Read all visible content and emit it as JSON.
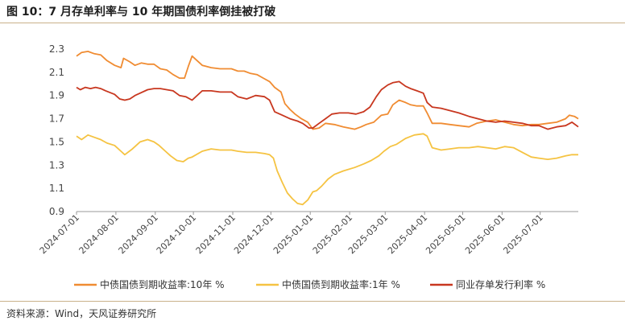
{
  "title": "图 10：7 月存单利率与 10 年期国债利率倒挂被打破",
  "source": "资料来源：Wind，天风证券研究所",
  "chart_data": {
    "type": "line",
    "x_type": "date",
    "xlim": [
      "2024-07-01",
      "2025-07-31"
    ],
    "ylim": [
      0.9,
      2.3
    ],
    "yticks": [
      0.9,
      1.1,
      1.3,
      1.5,
      1.7,
      1.9,
      2.1,
      2.3
    ],
    "xticks": [
      "2024-07-01",
      "2024-08-01",
      "2024-09-01",
      "2024-10-01",
      "2024-11-01",
      "2024-12-01",
      "2025-01-01",
      "2025-02-01",
      "2025-03-01",
      "2025-04-01",
      "2025-05-01",
      "2025-06-01",
      "2025-07-01"
    ],
    "legend_position": "bottom",
    "grid": false,
    "series": [
      {
        "name": "中债国债到期收益率:10年 %",
        "color": "#f08c32",
        "points": [
          [
            "2024-07-01",
            2.24
          ],
          [
            "2024-07-05",
            2.27
          ],
          [
            "2024-07-10",
            2.28
          ],
          [
            "2024-07-15",
            2.26
          ],
          [
            "2024-07-20",
            2.25
          ],
          [
            "2024-07-25",
            2.2
          ],
          [
            "2024-07-31",
            2.16
          ],
          [
            "2024-08-05",
            2.14
          ],
          [
            "2024-08-07",
            2.22
          ],
          [
            "2024-08-12",
            2.19
          ],
          [
            "2024-08-16",
            2.16
          ],
          [
            "2024-08-21",
            2.18
          ],
          [
            "2024-08-26",
            2.17
          ],
          [
            "2024-08-31",
            2.17
          ],
          [
            "2024-09-05",
            2.13
          ],
          [
            "2024-09-10",
            2.12
          ],
          [
            "2024-09-15",
            2.08
          ],
          [
            "2024-09-20",
            2.05
          ],
          [
            "2024-09-24",
            2.05
          ],
          [
            "2024-09-27",
            2.15
          ],
          [
            "2024-09-30",
            2.24
          ],
          [
            "2024-10-08",
            2.16
          ],
          [
            "2024-10-15",
            2.14
          ],
          [
            "2024-10-22",
            2.13
          ],
          [
            "2024-10-31",
            2.13
          ],
          [
            "2024-11-05",
            2.11
          ],
          [
            "2024-11-10",
            2.11
          ],
          [
            "2024-11-15",
            2.09
          ],
          [
            "2024-11-20",
            2.08
          ],
          [
            "2024-11-25",
            2.05
          ],
          [
            "2024-11-30",
            2.02
          ],
          [
            "2024-12-04",
            1.97
          ],
          [
            "2024-12-09",
            1.93
          ],
          [
            "2024-12-12",
            1.83
          ],
          [
            "2024-12-16",
            1.78
          ],
          [
            "2024-12-20",
            1.74
          ],
          [
            "2024-12-25",
            1.7
          ],
          [
            "2024-12-30",
            1.67
          ],
          [
            "2025-01-03",
            1.61
          ],
          [
            "2025-01-08",
            1.62
          ],
          [
            "2025-01-13",
            1.66
          ],
          [
            "2025-01-20",
            1.65
          ],
          [
            "2025-01-27",
            1.63
          ],
          [
            "2025-02-05",
            1.61
          ],
          [
            "2025-02-10",
            1.63
          ],
          [
            "2025-02-14",
            1.65
          ],
          [
            "2025-02-20",
            1.67
          ],
          [
            "2025-02-26",
            1.73
          ],
          [
            "2025-03-03",
            1.74
          ],
          [
            "2025-03-07",
            1.82
          ],
          [
            "2025-03-12",
            1.86
          ],
          [
            "2025-03-17",
            1.84
          ],
          [
            "2025-03-21",
            1.82
          ],
          [
            "2025-03-26",
            1.81
          ],
          [
            "2025-03-31",
            1.81
          ],
          [
            "2025-04-03",
            1.75
          ],
          [
            "2025-04-07",
            1.66
          ],
          [
            "2025-04-14",
            1.66
          ],
          [
            "2025-04-21",
            1.65
          ],
          [
            "2025-04-28",
            1.64
          ],
          [
            "2025-05-06",
            1.63
          ],
          [
            "2025-05-12",
            1.66
          ],
          [
            "2025-05-20",
            1.68
          ],
          [
            "2025-05-27",
            1.69
          ],
          [
            "2025-06-03",
            1.67
          ],
          [
            "2025-06-10",
            1.65
          ],
          [
            "2025-06-17",
            1.64
          ],
          [
            "2025-06-24",
            1.65
          ],
          [
            "2025-06-30",
            1.65
          ],
          [
            "2025-07-07",
            1.66
          ],
          [
            "2025-07-14",
            1.67
          ],
          [
            "2025-07-21",
            1.7
          ],
          [
            "2025-07-24",
            1.73
          ],
          [
            "2025-07-28",
            1.72
          ],
          [
            "2025-07-31",
            1.7
          ]
        ]
      },
      {
        "name": "中债国债到期收益率:1年 %",
        "color": "#f5c342",
        "points": [
          [
            "2024-07-01",
            1.55
          ],
          [
            "2024-07-05",
            1.52
          ],
          [
            "2024-07-10",
            1.56
          ],
          [
            "2024-07-15",
            1.54
          ],
          [
            "2024-07-20",
            1.52
          ],
          [
            "2024-07-25",
            1.49
          ],
          [
            "2024-07-31",
            1.47
          ],
          [
            "2024-08-05",
            1.42
          ],
          [
            "2024-08-08",
            1.39
          ],
          [
            "2024-08-14",
            1.44
          ],
          [
            "2024-08-20",
            1.5
          ],
          [
            "2024-08-26",
            1.52
          ],
          [
            "2024-08-31",
            1.5
          ],
          [
            "2024-09-04",
            1.47
          ],
          [
            "2024-09-09",
            1.42
          ],
          [
            "2024-09-13",
            1.38
          ],
          [
            "2024-09-18",
            1.34
          ],
          [
            "2024-09-23",
            1.33
          ],
          [
            "2024-09-27",
            1.36
          ],
          [
            "2024-09-30",
            1.37
          ],
          [
            "2024-10-08",
            1.42
          ],
          [
            "2024-10-15",
            1.44
          ],
          [
            "2024-10-22",
            1.43
          ],
          [
            "2024-10-31",
            1.43
          ],
          [
            "2024-11-05",
            1.42
          ],
          [
            "2024-11-12",
            1.41
          ],
          [
            "2024-11-19",
            1.41
          ],
          [
            "2024-11-26",
            1.4
          ],
          [
            "2024-11-30",
            1.39
          ],
          [
            "2024-12-03",
            1.36
          ],
          [
            "2024-12-06",
            1.25
          ],
          [
            "2024-12-10",
            1.15
          ],
          [
            "2024-12-14",
            1.06
          ],
          [
            "2024-12-18",
            1.01
          ],
          [
            "2024-12-22",
            0.97
          ],
          [
            "2024-12-26",
            0.96
          ],
          [
            "2024-12-30",
            1.0
          ],
          [
            "2025-01-03",
            1.07
          ],
          [
            "2025-01-06",
            1.08
          ],
          [
            "2025-01-10",
            1.12
          ],
          [
            "2025-01-15",
            1.18
          ],
          [
            "2025-01-20",
            1.22
          ],
          [
            "2025-01-27",
            1.25
          ],
          [
            "2025-02-05",
            1.28
          ],
          [
            "2025-02-12",
            1.31
          ],
          [
            "2025-02-18",
            1.34
          ],
          [
            "2025-02-24",
            1.38
          ],
          [
            "2025-02-28",
            1.42
          ],
          [
            "2025-03-05",
            1.46
          ],
          [
            "2025-03-10",
            1.48
          ],
          [
            "2025-03-17",
            1.53
          ],
          [
            "2025-03-24",
            1.56
          ],
          [
            "2025-03-31",
            1.57
          ],
          [
            "2025-04-03",
            1.55
          ],
          [
            "2025-04-07",
            1.45
          ],
          [
            "2025-04-14",
            1.43
          ],
          [
            "2025-04-21",
            1.44
          ],
          [
            "2025-04-28",
            1.45
          ],
          [
            "2025-05-06",
            1.45
          ],
          [
            "2025-05-13",
            1.46
          ],
          [
            "2025-05-20",
            1.45
          ],
          [
            "2025-05-27",
            1.44
          ],
          [
            "2025-06-03",
            1.46
          ],
          [
            "2025-06-10",
            1.45
          ],
          [
            "2025-06-17",
            1.41
          ],
          [
            "2025-06-24",
            1.37
          ],
          [
            "2025-06-30",
            1.36
          ],
          [
            "2025-07-07",
            1.35
          ],
          [
            "2025-07-14",
            1.36
          ],
          [
            "2025-07-21",
            1.38
          ],
          [
            "2025-07-26",
            1.39
          ],
          [
            "2025-07-31",
            1.39
          ]
        ]
      },
      {
        "name": "同业存单发行利率 %",
        "color": "#c8371f",
        "points": [
          [
            "2024-07-01",
            1.97
          ],
          [
            "2024-07-04",
            1.95
          ],
          [
            "2024-07-08",
            1.97
          ],
          [
            "2024-07-12",
            1.96
          ],
          [
            "2024-07-16",
            1.97
          ],
          [
            "2024-07-20",
            1.96
          ],
          [
            "2024-07-24",
            1.94
          ],
          [
            "2024-07-31",
            1.91
          ],
          [
            "2024-08-04",
            1.87
          ],
          [
            "2024-08-08",
            1.86
          ],
          [
            "2024-08-12",
            1.87
          ],
          [
            "2024-08-16",
            1.9
          ],
          [
            "2024-08-20",
            1.92
          ],
          [
            "2024-08-26",
            1.95
          ],
          [
            "2024-08-31",
            1.96
          ],
          [
            "2024-09-05",
            1.96
          ],
          [
            "2024-09-10",
            1.95
          ],
          [
            "2024-09-15",
            1.94
          ],
          [
            "2024-09-20",
            1.9
          ],
          [
            "2024-09-25",
            1.89
          ],
          [
            "2024-09-30",
            1.86
          ],
          [
            "2024-10-08",
            1.94
          ],
          [
            "2024-10-15",
            1.94
          ],
          [
            "2024-10-22",
            1.93
          ],
          [
            "2024-10-31",
            1.93
          ],
          [
            "2024-11-05",
            1.89
          ],
          [
            "2024-11-12",
            1.87
          ],
          [
            "2024-11-19",
            1.9
          ],
          [
            "2024-11-26",
            1.89
          ],
          [
            "2024-11-30",
            1.86
          ],
          [
            "2024-12-04",
            1.76
          ],
          [
            "2024-12-10",
            1.73
          ],
          [
            "2024-12-16",
            1.7
          ],
          [
            "2024-12-22",
            1.68
          ],
          [
            "2024-12-26",
            1.66
          ],
          [
            "2024-12-31",
            1.62
          ],
          [
            "2025-01-03",
            1.62
          ],
          [
            "2025-01-08",
            1.66
          ],
          [
            "2025-01-13",
            1.7
          ],
          [
            "2025-01-18",
            1.74
          ],
          [
            "2025-01-24",
            1.75
          ],
          [
            "2025-01-31",
            1.75
          ],
          [
            "2025-02-06",
            1.74
          ],
          [
            "2025-02-12",
            1.76
          ],
          [
            "2025-02-17",
            1.8
          ],
          [
            "2025-02-22",
            1.89
          ],
          [
            "2025-02-26",
            1.95
          ],
          [
            "2025-03-03",
            1.99
          ],
          [
            "2025-03-07",
            2.01
          ],
          [
            "2025-03-12",
            2.02
          ],
          [
            "2025-03-17",
            1.98
          ],
          [
            "2025-03-21",
            1.96
          ],
          [
            "2025-03-26",
            1.94
          ],
          [
            "2025-03-31",
            1.92
          ],
          [
            "2025-04-03",
            1.84
          ],
          [
            "2025-04-07",
            1.8
          ],
          [
            "2025-04-14",
            1.79
          ],
          [
            "2025-04-21",
            1.77
          ],
          [
            "2025-04-28",
            1.75
          ],
          [
            "2025-05-06",
            1.72
          ],
          [
            "2025-05-13",
            1.7
          ],
          [
            "2025-05-20",
            1.68
          ],
          [
            "2025-05-27",
            1.67
          ],
          [
            "2025-06-03",
            1.68
          ],
          [
            "2025-06-10",
            1.67
          ],
          [
            "2025-06-17",
            1.66
          ],
          [
            "2025-06-24",
            1.64
          ],
          [
            "2025-06-30",
            1.64
          ],
          [
            "2025-07-07",
            1.61
          ],
          [
            "2025-07-14",
            1.63
          ],
          [
            "2025-07-21",
            1.64
          ],
          [
            "2025-07-26",
            1.67
          ],
          [
            "2025-07-31",
            1.63
          ]
        ]
      }
    ]
  }
}
